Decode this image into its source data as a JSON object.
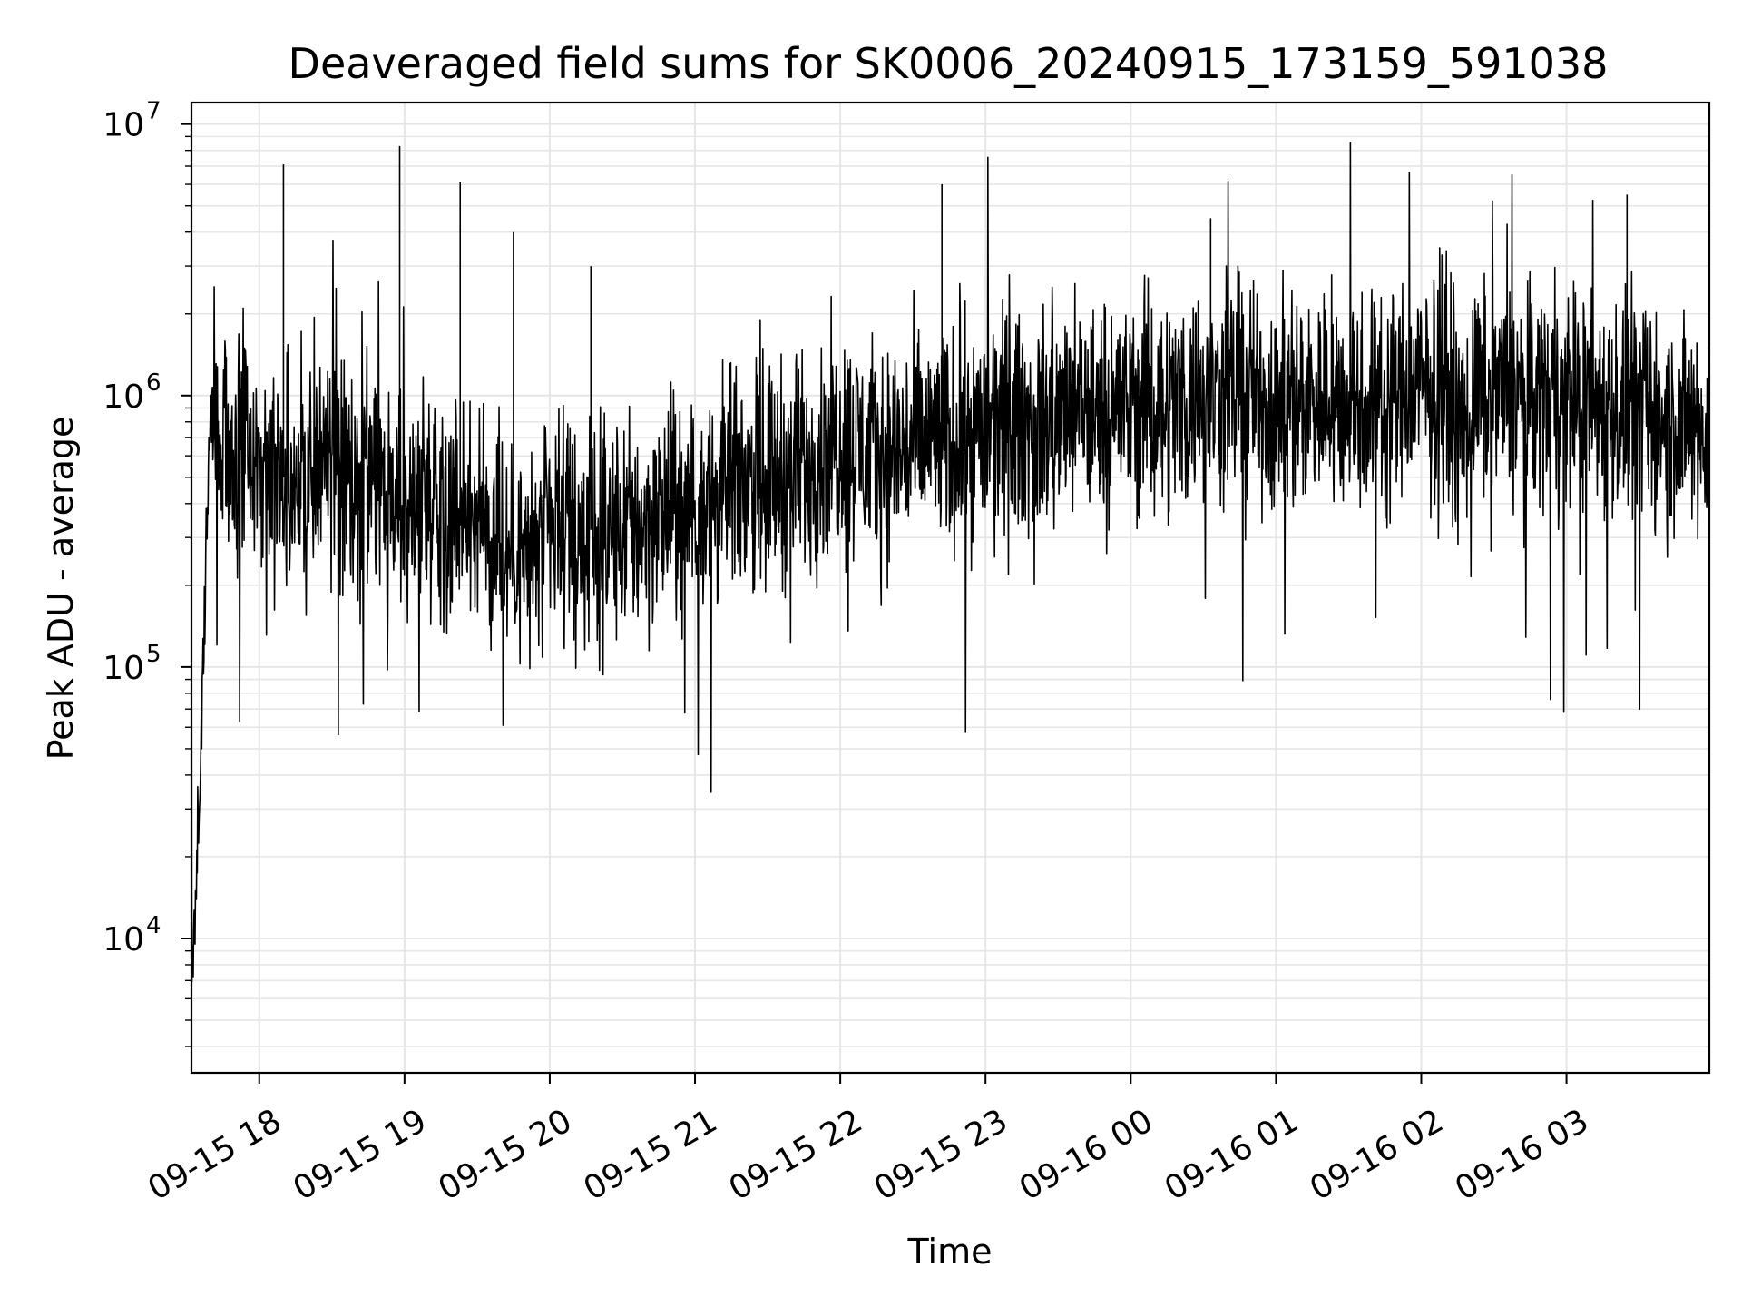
{
  "chart_data": {
    "type": "line",
    "title": "Deaveraged field sums for SK0006_20240915_173159_591038",
    "xlabel": "Time",
    "ylabel": "Peak ADU - average",
    "yscale": "log",
    "ylim": [
      3200,
      12000000
    ],
    "xlim": [
      "2024-09-15 17:31:59",
      "2024-09-16 03:59:00"
    ],
    "grid": true,
    "line_color": "#000000",
    "grid_color": "#e6e6e6",
    "x_ticks": [
      {
        "value": "2024-09-15 18:00",
        "label": "09-15 18"
      },
      {
        "value": "2024-09-15 19:00",
        "label": "09-15 19"
      },
      {
        "value": "2024-09-15 20:00",
        "label": "09-15 20"
      },
      {
        "value": "2024-09-15 21:00",
        "label": "09-15 21"
      },
      {
        "value": "2024-09-15 22:00",
        "label": "09-15 22"
      },
      {
        "value": "2024-09-15 23:00",
        "label": "09-15 23"
      },
      {
        "value": "2024-09-16 00:00",
        "label": "09-16 00"
      },
      {
        "value": "2024-09-16 01:00",
        "label": "09-16 01"
      },
      {
        "value": "2024-09-16 02:00",
        "label": "09-16 02"
      },
      {
        "value": "2024-09-16 03:00",
        "label": "09-16 03"
      }
    ],
    "y_ticks": [
      {
        "value": 10000,
        "base": "10",
        "exp": "4"
      },
      {
        "value": 100000,
        "base": "10",
        "exp": "5"
      },
      {
        "value": 1000000,
        "base": "10",
        "exp": "6"
      },
      {
        "value": 10000000,
        "base": "10",
        "exp": "7"
      }
    ],
    "series": [
      {
        "x": [
          "2024-09-15 17:32",
          "2024-09-15 17:33",
          "2024-09-15 17:34",
          "2024-09-15 17:35",
          "2024-09-15 17:36",
          "2024-09-15 17:37",
          "2024-09-15 17:38",
          "2024-09-15 17:39",
          "2024-09-15 17:40",
          "2024-09-15 17:42",
          "2024-09-15 17:44",
          "2024-09-15 17:46",
          "2024-09-15 17:48",
          "2024-09-15 17:50",
          "2024-09-15 17:55",
          "2024-09-15 18:00",
          "2024-09-15 18:10",
          "2024-09-15 18:15",
          "2024-09-15 18:20",
          "2024-09-15 18:30",
          "2024-09-15 18:40",
          "2024-09-15 18:50",
          "2024-09-15 18:58",
          "2024-09-15 19:00",
          "2024-09-15 19:10",
          "2024-09-15 19:20",
          "2024-09-15 19:23",
          "2024-09-15 19:30",
          "2024-09-15 19:40",
          "2024-09-15 19:45",
          "2024-09-15 19:50",
          "2024-09-15 20:00",
          "2024-09-15 20:10",
          "2024-09-15 20:17",
          "2024-09-15 20:30",
          "2024-09-15 20:45",
          "2024-09-15 21:00",
          "2024-09-15 21:15",
          "2024-09-15 21:30",
          "2024-09-15 21:45",
          "2024-09-15 22:00",
          "2024-09-15 22:15",
          "2024-09-15 22:30",
          "2024-09-15 22:42",
          "2024-09-15 22:50",
          "2024-09-15 23:00",
          "2024-09-15 23:20",
          "2024-09-15 23:40",
          "2024-09-16 00:00",
          "2024-09-16 00:20",
          "2024-09-16 00:33",
          "2024-09-16 00:45",
          "2024-09-16 01:00",
          "2024-09-16 01:15",
          "2024-09-16 01:30",
          "2024-09-16 01:45",
          "2024-09-16 02:00",
          "2024-09-16 02:15",
          "2024-09-16 02:30",
          "2024-09-16 02:45",
          "2024-09-16 03:00",
          "2024-09-16 03:15",
          "2024-09-16 03:25",
          "2024-09-16 03:40",
          "2024-09-16 03:59"
        ],
        "y": [
          5500,
          9000,
          20000,
          30000,
          60000,
          100000,
          250000,
          600000,
          1000000,
          800000,
          600000,
          700000,
          550000,
          650000,
          600000,
          550000,
          7100000,
          500000,
          450000,
          600000,
          400000,
          450000,
          8300000,
          350000,
          450000,
          400000,
          6100000,
          350000,
          300000,
          4000000,
          250000,
          300000,
          280000,
          3000000,
          320000,
          350000,
          400000,
          450000,
          500000,
          550000,
          700000,
          600000,
          650000,
          6000000,
          700000,
          750000,
          800000,
          850000,
          900000,
          950000,
          4500000,
          1000000,
          950000,
          1000000,
          900000,
          1000000,
          1050000,
          950000,
          1000000,
          1050000,
          1000000,
          950000,
          5500000,
          800000,
          700000
        ]
      }
    ]
  }
}
